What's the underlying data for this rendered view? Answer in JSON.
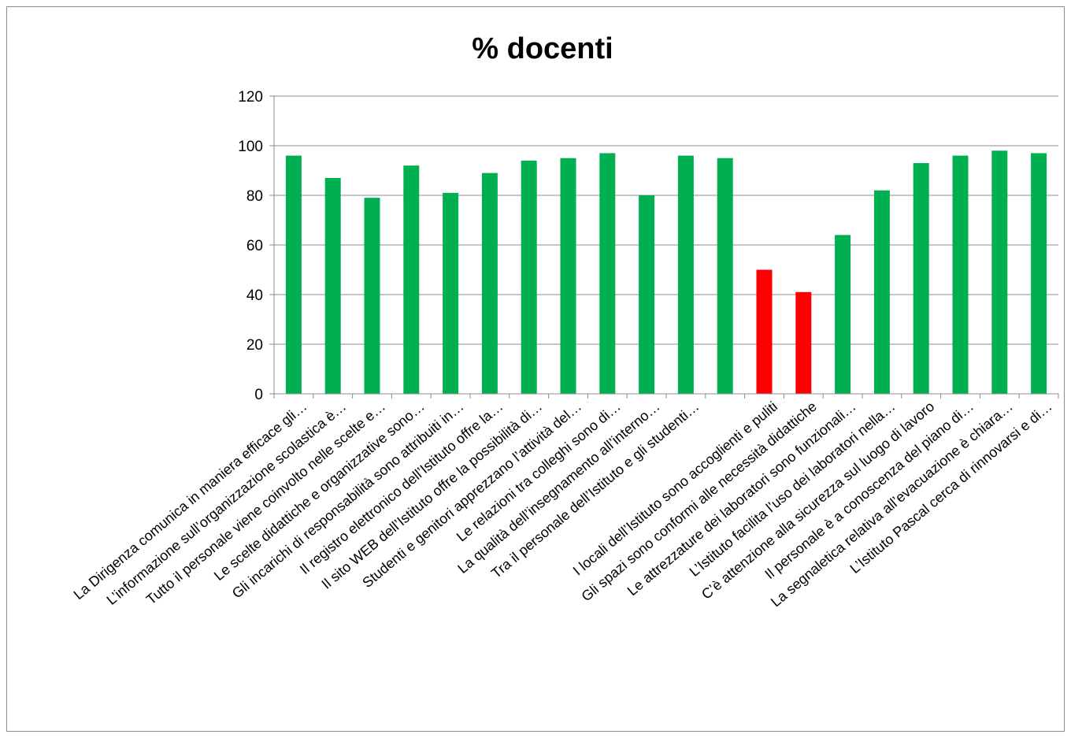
{
  "chart_data": {
    "type": "bar",
    "title": "% docenti",
    "xlabel": "",
    "ylabel": "",
    "ylim": [
      0,
      120
    ],
    "yticks": [
      0,
      20,
      40,
      60,
      80,
      100,
      120
    ],
    "grid": true,
    "legend": "none",
    "colors": {
      "default": "#00b050",
      "highlight": "#ff0000",
      "grid": "#8c8c8c"
    },
    "categories": [
      "La Dirigenza comunica in maniera efficace gli…",
      "L’informazione sull’organizzazione scolastica è…",
      "Tutto il personale viene coinvolto nelle scelte e…",
      "Le scelte didattiche e organizzative sono…",
      "Gli incarichi di responsabilità sono attribuiti in…",
      "Il registro elettronico dell’Istituto offre la…",
      "Il sito WEB dell’Istituto offre la possibilità di…",
      "Studenti e genitori apprezzano l’attività del…",
      "Le relazioni tra colleghi sono di…",
      "La qualità dell’insegnamento all’interno…",
      "Tra il personale dell’Istituto e gli studenti…",
      "",
      "I locali dell’Istituto sono accoglienti e puliti",
      "Gli spazi sono conformi alle necessità didattiche",
      "Le attrezzature dei laboratori sono funzionali…",
      "L’Istituto facilita l’uso dei laboratori nella…",
      "C’è attenzione alla sicurezza sul luogo di lavoro",
      "Il personale è a conoscenza del piano di…",
      "La segnaletica relativa all’evacuazione è chiara…",
      "L’Istituto Pascal  cerca di rinnovarsi e di…"
    ],
    "values": [
      96,
      87,
      79,
      92,
      81,
      89,
      94,
      95,
      97,
      80,
      96,
      95,
      50,
      41,
      64,
      82,
      93,
      96,
      98,
      97
    ],
    "highlight_indices": [
      12,
      13
    ]
  }
}
